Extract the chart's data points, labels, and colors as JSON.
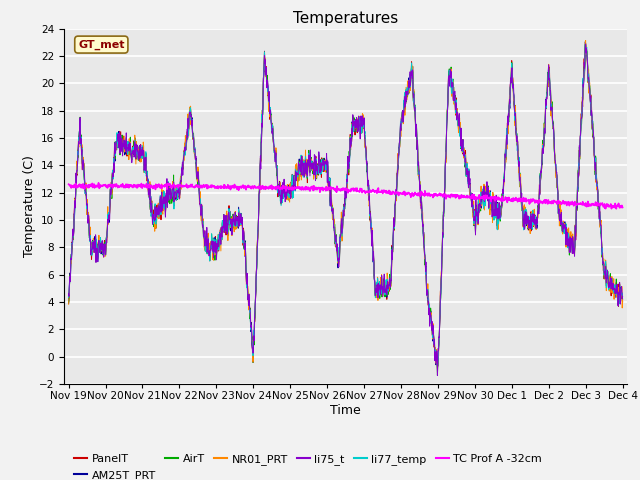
{
  "title": "Temperatures",
  "xlabel": "Time",
  "ylabel": "Temperature (C)",
  "ylim": [
    -2,
    24
  ],
  "yticks": [
    -2,
    0,
    2,
    4,
    6,
    8,
    10,
    12,
    14,
    16,
    18,
    20,
    22,
    24
  ],
  "xtick_labels": [
    "Nov 19",
    "Nov 20",
    "Nov 21",
    "Nov 22",
    "Nov 23",
    "Nov 24",
    "Nov 25",
    "Nov 26",
    "Nov 27",
    "Nov 28",
    "Nov 29",
    "Nov 30",
    "Dec 1",
    "Dec 2",
    "Dec 3",
    "Dec 4"
  ],
  "annotation_text": "GT_met",
  "annotation_color": "#8B0000",
  "annotation_bg": "#FFFACD",
  "series_colors": {
    "PanelT": "#CC0000",
    "AM25T_PRT": "#000099",
    "AirT": "#00AA00",
    "NR01_PRT": "#FF8800",
    "li75_t": "#8800CC",
    "li77_temp": "#00CCCC",
    "TC Prof A -32cm": "#FF00FF"
  },
  "background_color": "#E8E8E8",
  "grid_color": "#FFFFFF",
  "title_fontsize": 11,
  "axis_fontsize": 9,
  "tick_fontsize": 7.5,
  "legend_fontsize": 8,
  "annot_fontsize": 8
}
